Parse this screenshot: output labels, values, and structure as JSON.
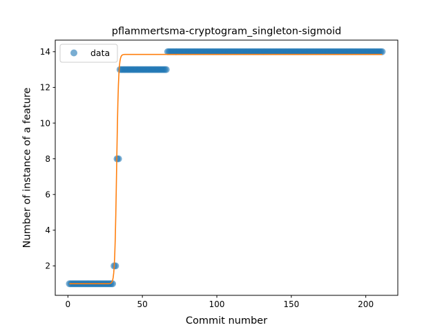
{
  "chart_data": {
    "type": "scatter",
    "title": "pflammertsma-cryptogram_singleton-sigmoid",
    "xlabel": "Commit number",
    "ylabel": "Number of instance of a feature",
    "xlim": [
      -8.5,
      221.5
    ],
    "ylim": [
      0.35,
      14.65
    ],
    "xticks": [
      0,
      50,
      100,
      150,
      200
    ],
    "yticks": [
      2,
      4,
      6,
      8,
      10,
      12,
      14
    ],
    "legend": {
      "position": "top-left",
      "entries": [
        "data"
      ]
    },
    "grid": false,
    "colors": {
      "data": "#1f77b4",
      "fit": "#ff7f0e"
    },
    "series": [
      {
        "name": "data",
        "kind": "scatter",
        "segments": [
          {
            "x_start": 1,
            "x_end": 30,
            "y": 1
          },
          {
            "x_start": 31,
            "x_end": 32,
            "y": 2
          },
          {
            "x_start": 33,
            "x_end": 34,
            "y": 8
          },
          {
            "x_start": 35,
            "x_end": 66,
            "y": 13
          },
          {
            "x_start": 67,
            "x_end": 211,
            "y": 14
          }
        ]
      },
      {
        "kind": "line",
        "model": "sigmoid",
        "params": {
          "lower": 1.0,
          "upper": 13.85,
          "midpoint": 32.7,
          "steepness": 1.55
        },
        "x_range": [
          1,
          211
        ]
      }
    ]
  }
}
